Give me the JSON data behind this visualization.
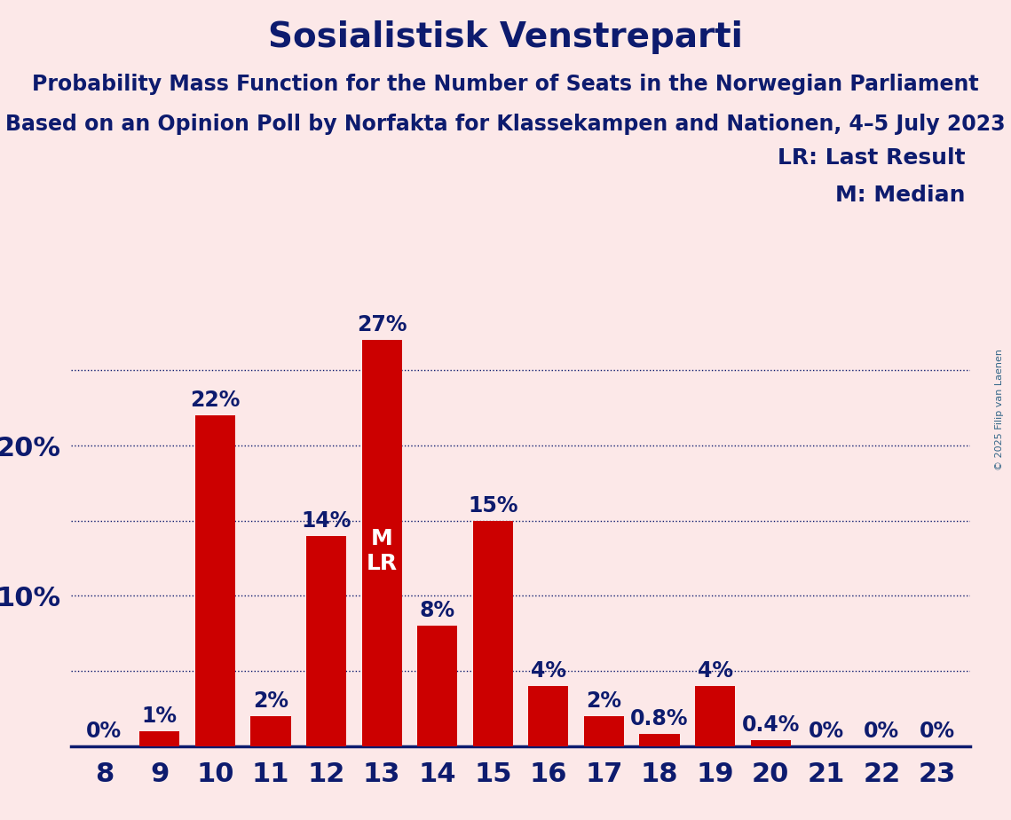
{
  "title": "Sosialistisk Venstreparti",
  "subtitle1": "Probability Mass Function for the Number of Seats in the Norwegian Parliament",
  "subtitle2": "Based on an Opinion Poll by Norfakta for Klassekampen and Nationen, 4–5 July 2023",
  "copyright": "© 2025 Filip van Laenen",
  "legend_lr": "LR: Last Result",
  "legend_m": "M: Median",
  "seats": [
    8,
    9,
    10,
    11,
    12,
    13,
    14,
    15,
    16,
    17,
    18,
    19,
    20,
    21,
    22,
    23
  ],
  "probabilities": [
    0,
    1.0,
    22,
    2,
    14,
    27,
    8,
    15,
    4,
    2,
    0.8,
    4,
    0.4,
    0,
    0,
    0
  ],
  "bar_color": "#cc0000",
  "background_color": "#fce8e8",
  "text_color": "#0d1b6e",
  "median_seat": 13,
  "last_result_seat": 13,
  "ymax": 30,
  "dotted_lines": [
    5,
    10,
    15,
    20,
    25
  ],
  "solid_lines": [
    10,
    20
  ],
  "ytick_values": [
    10,
    20
  ],
  "ytick_labels": [
    "10%",
    "20%"
  ],
  "title_fontsize": 28,
  "subtitle_fontsize": 17,
  "axis_fontsize": 22,
  "bar_label_fontsize": 17,
  "legend_fontsize": 18,
  "copyright_fontsize": 8,
  "copyright_color": "#336688"
}
